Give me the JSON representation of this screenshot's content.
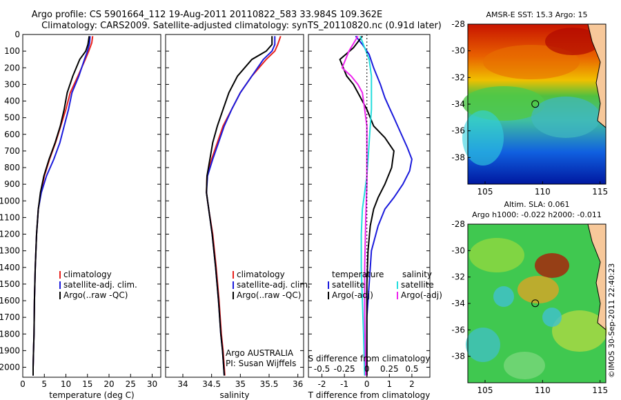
{
  "header": {
    "line1": "Argo profile: CS 5901664_112 19-Aug-2011 20110822_583 33.984S 109.362E",
    "line2": "Climatology: CARS2009. Satellite-adjusted climatology: synTS_20110820.nc (0.91d later)"
  },
  "colors": {
    "climatology": "#e8201c",
    "satellite": "#1a1adc",
    "argo": "#000000",
    "argo_salinity_adj": "#ee22ee",
    "sat_salinity": "#22dddd"
  },
  "chart_data": [
    {
      "type": "line",
      "xlabel": "temperature (deg C)",
      "ylabel": "",
      "xlim": [
        0,
        32
      ],
      "ylim": [
        2060,
        0
      ],
      "xticks": [
        0,
        5,
        10,
        15,
        20,
        25,
        30
      ],
      "yticks": [
        0,
        100,
        200,
        300,
        400,
        500,
        600,
        700,
        800,
        900,
        1000,
        1100,
        1200,
        1300,
        1400,
        1500,
        1600,
        1700,
        1800,
        1900,
        2000
      ],
      "legend": [
        "climatology",
        "satellite-adj. clim.",
        "Argo(..raw -QC)"
      ],
      "series": [
        {
          "name": "climatology",
          "color": "#e8201c",
          "x": [
            16.2,
            16.0,
            15.3,
            14.5,
            12.8,
            11.0,
            10.0,
            8.8,
            7.6,
            6.2,
            5.0,
            4.2,
            3.6,
            3.2,
            2.9,
            2.7,
            2.6,
            2.5,
            2.4,
            2.4
          ],
          "y": [
            10,
            50,
            100,
            150,
            250,
            350,
            450,
            550,
            650,
            750,
            850,
            950,
            1050,
            1200,
            1400,
            1600,
            1800,
            1900,
            2000,
            2050
          ]
        },
        {
          "name": "satellite-adj. clim.",
          "color": "#1a1adc",
          "x": [
            15.6,
            15.5,
            15.0,
            14.3,
            13.0,
            11.4,
            10.6,
            9.6,
            8.6,
            7.2,
            5.5,
            4.3,
            3.6,
            3.2,
            2.9,
            2.7,
            2.6,
            2.5,
            2.4,
            2.4
          ],
          "y": [
            10,
            50,
            100,
            150,
            250,
            350,
            450,
            550,
            650,
            750,
            850,
            950,
            1050,
            1200,
            1400,
            1600,
            1800,
            1900,
            2000,
            2050
          ]
        },
        {
          "name": "Argo(..raw -QC)",
          "color": "#000000",
          "x": [
            15.4,
            15.1,
            14.6,
            13.2,
            11.6,
            10.3,
            9.6,
            8.7,
            7.5,
            6.1,
            4.9,
            4.1,
            3.6,
            3.2,
            2.9,
            2.7,
            2.6,
            2.5,
            2.4,
            2.4
          ],
          "y": [
            10,
            60,
            100,
            150,
            250,
            350,
            450,
            550,
            650,
            750,
            850,
            950,
            1050,
            1200,
            1400,
            1600,
            1800,
            1900,
            2000,
            2050
          ]
        }
      ]
    },
    {
      "type": "line",
      "xlabel": "salinity",
      "xlim": [
        33.7,
        36.1
      ],
      "ylim": [
        2060,
        0
      ],
      "xticks": [
        34,
        34.5,
        35,
        35.5,
        36
      ],
      "legend": [
        "climatology",
        "satellite-adj. clim.",
        "Argo(..raw -QC)"
      ],
      "annotation": [
        "Argo AUSTRALIA",
        "PI: Susan Wijffels"
      ],
      "series": [
        {
          "name": "climatology",
          "color": "#e8201c",
          "x": [
            35.7,
            35.65,
            35.6,
            35.45,
            35.2,
            35.0,
            34.85,
            34.7,
            34.6,
            34.5,
            34.42,
            34.41,
            34.45,
            34.52,
            34.58,
            34.63,
            34.67,
            34.7,
            34.72,
            34.73
          ],
          "y": [
            10,
            60,
            100,
            150,
            250,
            350,
            450,
            550,
            650,
            750,
            850,
            950,
            1050,
            1200,
            1400,
            1600,
            1800,
            1900,
            2000,
            2050
          ]
        },
        {
          "name": "satellite-adj. clim.",
          "color": "#1a1adc",
          "x": [
            35.6,
            35.6,
            35.55,
            35.4,
            35.2,
            35.0,
            34.85,
            34.72,
            34.62,
            34.52,
            34.43,
            34.41,
            34.45,
            34.51,
            34.57,
            34.62,
            34.66,
            34.69,
            34.71,
            34.72
          ],
          "y": [
            10,
            60,
            100,
            150,
            250,
            350,
            450,
            550,
            650,
            750,
            850,
            950,
            1050,
            1200,
            1400,
            1600,
            1800,
            1900,
            2000,
            2050
          ]
        },
        {
          "name": "Argo(..raw -QC)",
          "color": "#000000",
          "x": [
            35.55,
            35.55,
            35.45,
            35.2,
            34.95,
            34.8,
            34.7,
            34.6,
            34.52,
            34.47,
            34.42,
            34.41,
            34.45,
            34.51,
            34.57,
            34.62,
            34.66,
            34.69,
            34.71,
            34.72
          ],
          "y": [
            10,
            60,
            100,
            150,
            250,
            350,
            450,
            550,
            650,
            750,
            850,
            950,
            1050,
            1200,
            1400,
            1600,
            1800,
            1900,
            2000,
            2050
          ]
        }
      ]
    },
    {
      "type": "line",
      "xlabel": "T difference from climatology",
      "top_label": "S difference from climatology",
      "xlim": [
        -2.6,
        2.8
      ],
      "ylim": [
        2060,
        0
      ],
      "xticks": [
        -2,
        -1,
        0,
        1,
        2
      ],
      "top_ticks": [
        "-0.5",
        "-0.25",
        "0",
        "0.25",
        "0.5"
      ],
      "legend_groups": [
        "temperature",
        "salinity"
      ],
      "legend": [
        "satellite",
        "Argo(-adj)",
        "satellite",
        "Argo(-adj)"
      ],
      "series": [
        {
          "name": "temperature satellite",
          "color": "#1a1adc",
          "x": [
            -0.5,
            -0.2,
            0.1,
            0.3,
            0.6,
            0.8,
            1.0,
            1.2,
            1.4,
            1.6,
            1.8,
            2.0,
            1.9,
            1.6,
            1.2,
            0.8,
            0.5,
            0.2,
            0.1,
            0.0,
            0.0,
            0.0
          ],
          "y": [
            10,
            60,
            120,
            200,
            300,
            380,
            440,
            500,
            560,
            620,
            680,
            750,
            820,
            900,
            980,
            1050,
            1150,
            1300,
            1500,
            1700,
            1900,
            2050
          ]
        },
        {
          "name": "temperature Argo(-adj)",
          "color": "#000000",
          "x": [
            -0.2,
            -0.6,
            -1.2,
            -0.9,
            -0.6,
            -0.4,
            -0.2,
            0.0,
            0.3,
            0.8,
            1.2,
            1.1,
            0.8,
            0.5,
            0.3,
            0.15,
            0.05,
            0.0,
            0.0,
            0.0
          ],
          "y": [
            10,
            80,
            150,
            250,
            300,
            350,
            400,
            450,
            550,
            620,
            700,
            800,
            900,
            980,
            1050,
            1150,
            1300,
            1500,
            1700,
            2050
          ]
        },
        {
          "name": "salinity satellite",
          "color": "#22dddd",
          "x": [
            -0.3,
            -0.1,
            0.1,
            0.2,
            0.2,
            0.2,
            0.15,
            0.1,
            0.05,
            0.0,
            -0.1,
            -0.2,
            -0.25,
            -0.25,
            -0.2,
            -0.15,
            -0.1
          ],
          "y": [
            10,
            80,
            150,
            250,
            350,
            450,
            550,
            650,
            750,
            850,
            950,
            1050,
            1200,
            1400,
            1600,
            1800,
            2050
          ]
        },
        {
          "name": "salinity Argo(-adj)",
          "color": "#ee22ee",
          "x": [
            -0.4,
            -0.8,
            -1.1,
            -0.7,
            -0.4,
            -0.2,
            -0.1,
            0.0,
            0.0,
            0.0,
            -0.05,
            -0.1,
            -0.1,
            -0.05
          ],
          "y": [
            10,
            100,
            200,
            250,
            300,
            350,
            450,
            550,
            700,
            900,
            1100,
            1400,
            1700,
            2050
          ]
        }
      ]
    },
    {
      "type": "heatmap",
      "title": "AMSR-E SST: 15.3 Argo: 15",
      "xlim": [
        103.5,
        115.5
      ],
      "ylim": [
        -40,
        -28
      ],
      "xticks": [
        105,
        110,
        115
      ],
      "yticks": [
        -28,
        -30,
        -32,
        -34,
        -36,
        -38
      ],
      "marker": {
        "lon": 109.362,
        "lat": -33.984
      }
    },
    {
      "type": "heatmap",
      "title": "Altim. SLA: 0.061",
      "subtitle": "Argo h1000: -0.022 h2000: -0.011",
      "xlim": [
        103.5,
        115.5
      ],
      "ylim": [
        -40,
        -28
      ],
      "xticks": [
        105,
        110,
        115
      ],
      "yticks": [
        -28,
        -30,
        -32,
        -34,
        -36,
        -38
      ],
      "marker": {
        "lon": 109.362,
        "lat": -33.984
      }
    }
  ],
  "footer": {
    "stamp": "©IMOS 30-Sep-2011 22:40:23"
  }
}
